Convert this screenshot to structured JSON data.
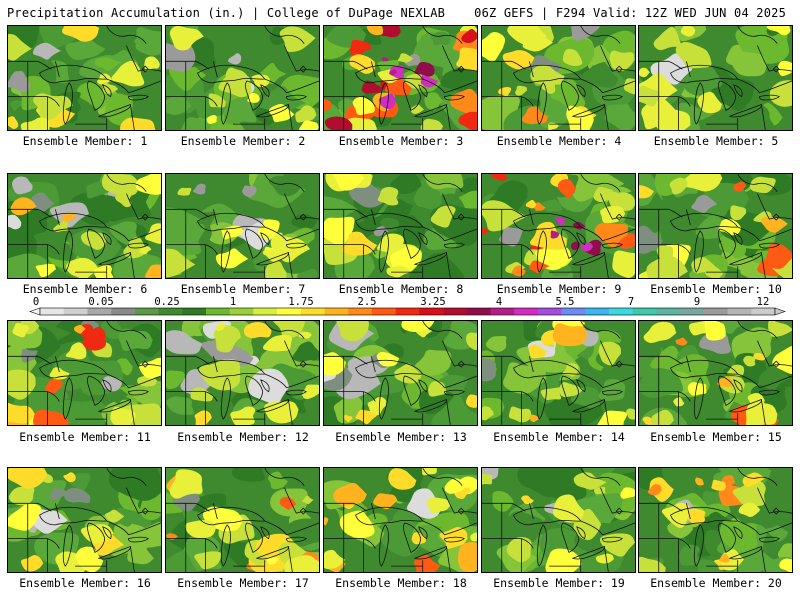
{
  "header": {
    "left": "Precipitation Accumulation (in.) | College of DuPage NEXLAB",
    "right": "06Z GEFS | F294 Valid: 12Z WED JUN 04 2025"
  },
  "colorbar": {
    "labels": [
      "0",
      "0.05",
      "0.25",
      "1",
      "1.75",
      "2.5",
      "3.25",
      "4",
      "5.5",
      "7",
      "9",
      "12"
    ],
    "colors": [
      "#e6e6e6",
      "#cfcfcf",
      "#a8a8a8",
      "#8a8a8a",
      "#5c9a4a",
      "#3f8a2e",
      "#2f7a24",
      "#6cb82e",
      "#9ad13a",
      "#d8ef3c",
      "#ffff3a",
      "#ffdc2a",
      "#ffb31e",
      "#ff8a1a",
      "#ff5a14",
      "#f02a10",
      "#d8101c",
      "#b00e2e",
      "#900c4a",
      "#b41c8c",
      "#d22cc0",
      "#a64ce0",
      "#6c8cf0",
      "#3cb4f0",
      "#3cd8e0",
      "#40c8a8",
      "#5ab4a0",
      "#7aa6a0",
      "#9a9a9a",
      "#b4b4b4",
      "#cccccc"
    ]
  },
  "members": [
    {
      "caption": "Ensemble Member: 1",
      "level": 0.3,
      "gray": 0.1,
      "seed": 11
    },
    {
      "caption": "Ensemble Member: 2",
      "level": 0.25,
      "gray": 0.25,
      "seed": 22
    },
    {
      "caption": "Ensemble Member: 3",
      "level": 0.75,
      "gray": 0.05,
      "seed": 33
    },
    {
      "caption": "Ensemble Member: 4",
      "level": 0.45,
      "gray": 0.15,
      "seed": 44
    },
    {
      "caption": "Ensemble Member: 5",
      "level": 0.3,
      "gray": 0.05,
      "seed": 55
    },
    {
      "caption": "Ensemble Member: 6",
      "level": 0.35,
      "gray": 0.3,
      "seed": 66
    },
    {
      "caption": "Ensemble Member: 7",
      "level": 0.2,
      "gray": 0.25,
      "seed": 77
    },
    {
      "caption": "Ensemble Member: 8",
      "level": 0.3,
      "gray": 0.1,
      "seed": 88
    },
    {
      "caption": "Ensemble Member: 9",
      "level": 0.65,
      "gray": 0.05,
      "seed": 99
    },
    {
      "caption": "Ensemble Member: 10",
      "level": 0.55,
      "gray": 0.1,
      "seed": 110
    },
    {
      "caption": "Ensemble Member: 11",
      "level": 0.6,
      "gray": 0.2,
      "seed": 121
    },
    {
      "caption": "Ensemble Member: 12",
      "level": 0.3,
      "gray": 0.45,
      "seed": 132
    },
    {
      "caption": "Ensemble Member: 13",
      "level": 0.3,
      "gray": 0.45,
      "seed": 143
    },
    {
      "caption": "Ensemble Member: 14",
      "level": 0.4,
      "gray": 0.2,
      "seed": 154
    },
    {
      "caption": "Ensemble Member: 15",
      "level": 0.55,
      "gray": 0.05,
      "seed": 165
    },
    {
      "caption": "Ensemble Member: 16",
      "level": 0.3,
      "gray": 0.25,
      "seed": 176
    },
    {
      "caption": "Ensemble Member: 17",
      "level": 0.55,
      "gray": 0.05,
      "seed": 187
    },
    {
      "caption": "Ensemble Member: 18",
      "level": 0.5,
      "gray": 0.05,
      "seed": 198
    },
    {
      "caption": "Ensemble Member: 19",
      "level": 0.3,
      "gray": 0.1,
      "seed": 209
    },
    {
      "caption": "Ensemble Member: 20",
      "level": 0.45,
      "gray": 0.05,
      "seed": 220
    }
  ]
}
